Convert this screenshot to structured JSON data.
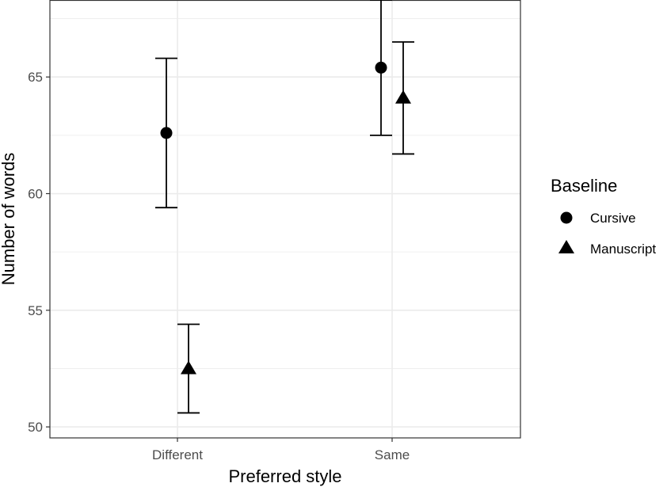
{
  "chart_data": {
    "type": "scatter",
    "subtype": "point-with-error-bars",
    "xlabel": "Preferred style",
    "ylabel": "Number of words",
    "categories": [
      "Different",
      "Same"
    ],
    "ylim": [
      49.8,
      68.3
    ],
    "yticks": [
      50,
      55,
      60,
      65
    ],
    "grid": true,
    "legend": {
      "title": "Baseline",
      "position": "right"
    },
    "series": [
      {
        "name": "Cursive",
        "shape": "circle",
        "points": [
          {
            "x": "Different",
            "y": 62.6,
            "ymin": 59.4,
            "ymax": 65.8
          },
          {
            "x": "Same",
            "y": 65.4,
            "ymin": 62.5,
            "ymax": 68.3
          }
        ]
      },
      {
        "name": "Manuscript",
        "shape": "triangle",
        "points": [
          {
            "x": "Different",
            "y": 52.5,
            "ymin": 50.6,
            "ymax": 54.4
          },
          {
            "x": "Same",
            "y": 64.1,
            "ymin": 61.7,
            "ymax": 66.5
          }
        ]
      }
    ],
    "colors": {
      "points": "#000000",
      "grid": "#ebebeb",
      "panel_border": "#333333",
      "tick_text": "#4d4d4d"
    }
  }
}
